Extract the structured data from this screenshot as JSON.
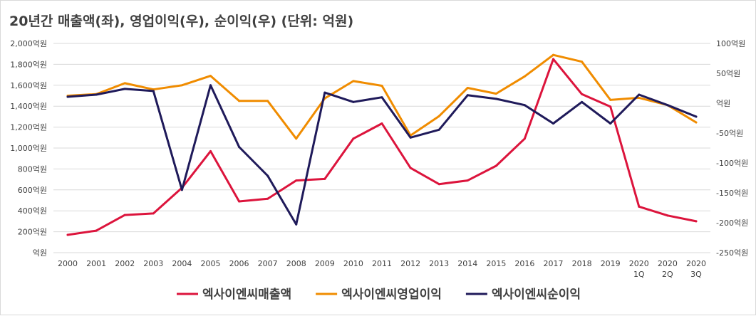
{
  "chart_data": {
    "type": "line",
    "title": "20년간 매출액(좌), 영업이익(우), 순이익(우) (단위: 억원)",
    "categories": [
      [
        "2000"
      ],
      [
        "2001"
      ],
      [
        "2002"
      ],
      [
        "2003"
      ],
      [
        "2004"
      ],
      [
        "2005"
      ],
      [
        "2006"
      ],
      [
        "2007"
      ],
      [
        "2008"
      ],
      [
        "2009"
      ],
      [
        "2010"
      ],
      [
        "2011"
      ],
      [
        "2012"
      ],
      [
        "2013"
      ],
      [
        "2014"
      ],
      [
        "2015"
      ],
      [
        "2016"
      ],
      [
        "2017"
      ],
      [
        "2018"
      ],
      [
        "2019"
      ],
      [
        "2020",
        "1Q"
      ],
      [
        "2020",
        "2Q"
      ],
      [
        "2020",
        "3Q"
      ]
    ],
    "left_axis": {
      "min": 0,
      "max": 2000,
      "step": 200,
      "tick_labels": [
        "억원",
        "200억원",
        "400억원",
        "600억원",
        "800억원",
        "1,000억원",
        "1,200억원",
        "1,400억원",
        "1,600억원",
        "1,800억원",
        "2,000억원"
      ]
    },
    "right_axis": {
      "min": -250,
      "max": 100,
      "step": 50,
      "tick_labels": [
        "-250억원",
        "-200억원",
        "-150억원",
        "-100억원",
        "-50억원",
        "억원",
        "50억원",
        "100억원"
      ]
    },
    "grid": "horizontal",
    "legend_position": "bottom",
    "series": [
      {
        "name": "엑사이엔씨매출액",
        "axis": "left",
        "color": "#dc143c",
        "values": [
          170,
          210,
          360,
          375,
          620,
          970,
          490,
          515,
          690,
          705,
          1090,
          1235,
          810,
          655,
          690,
          830,
          1090,
          1850,
          1515,
          1395,
          440,
          355,
          300
        ]
      },
      {
        "name": "엑사이엔씨영업이익",
        "axis": "left",
        "color": "#f08c00",
        "values": [
          1500,
          1515,
          1620,
          1560,
          1600,
          1690,
          1450,
          1450,
          1090,
          1475,
          1640,
          1595,
          1120,
          1305,
          1575,
          1520,
          1685,
          1890,
          1825,
          1460,
          1480,
          1410,
          1245
        ]
      },
      {
        "name": "엑사이엔씨순이익",
        "axis": "left",
        "color": "#1f1a5a",
        "values": [
          1490,
          1510,
          1565,
          1545,
          600,
          1600,
          1010,
          735,
          270,
          1530,
          1440,
          1485,
          1100,
          1175,
          1505,
          1470,
          1410,
          1235,
          1440,
          1235,
          1510,
          1410,
          1300
        ]
      }
    ]
  }
}
